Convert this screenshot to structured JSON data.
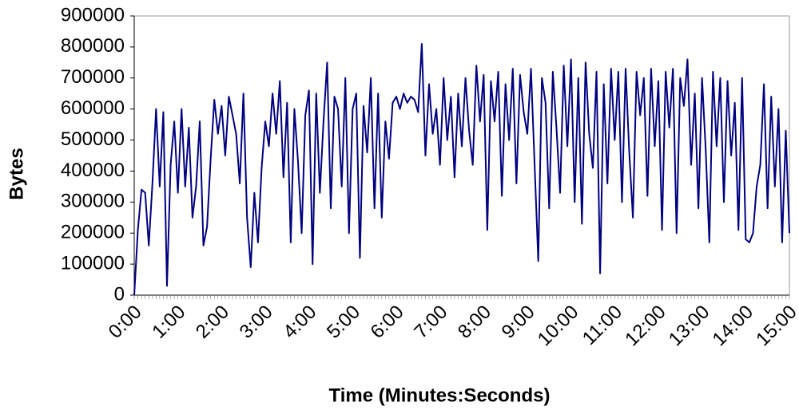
{
  "chart_data": {
    "type": "line",
    "xlabel": "Time (Minutes:Seconds)",
    "ylabel": "Bytes",
    "categories": [
      "0:00",
      null,
      null,
      null,
      null,
      null,
      null,
      null,
      null,
      null,
      null,
      null,
      "1:00",
      null,
      null,
      null,
      null,
      null,
      null,
      null,
      null,
      null,
      null,
      null,
      "2:00",
      null,
      null,
      null,
      null,
      null,
      null,
      null,
      null,
      null,
      null,
      null,
      "3:00",
      null,
      null,
      null,
      null,
      null,
      null,
      null,
      null,
      null,
      null,
      null,
      "4:00",
      null,
      null,
      null,
      null,
      null,
      null,
      null,
      null,
      null,
      null,
      null,
      "5:00",
      null,
      null,
      null,
      null,
      null,
      null,
      null,
      null,
      null,
      null,
      null,
      "6:00",
      null,
      null,
      null,
      null,
      null,
      null,
      null,
      null,
      null,
      null,
      null,
      "7:00",
      null,
      null,
      null,
      null,
      null,
      null,
      null,
      null,
      null,
      null,
      null,
      "8:00",
      null,
      null,
      null,
      null,
      null,
      null,
      null,
      null,
      null,
      null,
      null,
      "9:00",
      null,
      null,
      null,
      null,
      null,
      null,
      null,
      null,
      null,
      null,
      null,
      "10:00",
      null,
      null,
      null,
      null,
      null,
      null,
      null,
      null,
      null,
      null,
      null,
      "11:00",
      null,
      null,
      null,
      null,
      null,
      null,
      null,
      null,
      null,
      null,
      null,
      "12:00",
      null,
      null,
      null,
      null,
      null,
      null,
      null,
      null,
      null,
      null,
      null,
      "13:00",
      null,
      null,
      null,
      null,
      null,
      null,
      null,
      null,
      null,
      null,
      null,
      "14:00",
      null,
      null,
      null,
      null,
      null,
      null,
      null,
      null,
      null,
      null,
      null,
      "15:00"
    ],
    "series": [
      {
        "name": "Bytes",
        "color": "#000080",
        "values": [
          0,
          210000,
          340000,
          330000,
          160000,
          360000,
          600000,
          350000,
          590000,
          30000,
          420000,
          560000,
          330000,
          600000,
          350000,
          540000,
          250000,
          350000,
          560000,
          160000,
          220000,
          440000,
          630000,
          520000,
          610000,
          450000,
          640000,
          580000,
          520000,
          360000,
          650000,
          250000,
          90000,
          330000,
          170000,
          410000,
          560000,
          480000,
          650000,
          520000,
          690000,
          380000,
          620000,
          170000,
          600000,
          430000,
          200000,
          580000,
          660000,
          100000,
          650000,
          330000,
          560000,
          750000,
          280000,
          640000,
          600000,
          350000,
          700000,
          200000,
          600000,
          650000,
          120000,
          610000,
          460000,
          700000,
          280000,
          650000,
          250000,
          560000,
          440000,
          620000,
          640000,
          600000,
          650000,
          620000,
          640000,
          630000,
          590000,
          810000,
          450000,
          680000,
          520000,
          600000,
          420000,
          700000,
          500000,
          640000,
          380000,
          650000,
          480000,
          700000,
          530000,
          420000,
          740000,
          560000,
          710000,
          210000,
          690000,
          560000,
          720000,
          320000,
          680000,
          500000,
          730000,
          360000,
          710000,
          590000,
          520000,
          730000,
          420000,
          110000,
          700000,
          620000,
          280000,
          720000,
          540000,
          330000,
          740000,
          480000,
          760000,
          300000,
          700000,
          230000,
          750000,
          520000,
          410000,
          720000,
          70000,
          680000,
          360000,
          730000,
          500000,
          720000,
          300000,
          730000,
          460000,
          250000,
          720000,
          580000,
          700000,
          320000,
          730000,
          480000,
          690000,
          210000,
          720000,
          540000,
          730000,
          200000,
          700000,
          610000,
          760000,
          420000,
          650000,
          280000,
          700000,
          470000,
          170000,
          720000,
          480000,
          700000,
          300000,
          690000,
          450000,
          620000,
          210000,
          700000,
          180000,
          170000,
          200000,
          350000,
          420000,
          680000,
          280000,
          640000,
          350000,
          600000,
          170000,
          530000,
          200000
        ]
      }
    ],
    "ylim": [
      0,
      900000
    ],
    "yticks": [
      0,
      100000,
      200000,
      300000,
      400000,
      500000,
      600000,
      700000,
      800000,
      900000
    ],
    "grid": false
  }
}
